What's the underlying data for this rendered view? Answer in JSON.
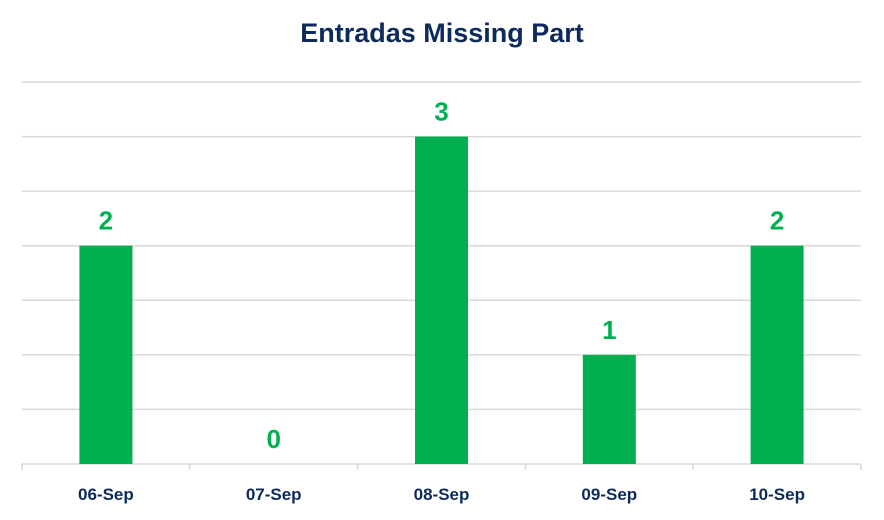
{
  "chart_data": {
    "type": "bar",
    "title": "Entradas Missing Part",
    "xlabel": "",
    "ylabel": "",
    "categories": [
      "06-Sep",
      "07-Sep",
      "08-Sep",
      "09-Sep",
      "10-Sep"
    ],
    "values": [
      2,
      0,
      3,
      1,
      2
    ],
    "data_labels": [
      "2",
      "0",
      "3",
      "1",
      "2"
    ],
    "ylim": [
      0,
      3.5
    ],
    "grid": true,
    "legend": "none",
    "bar_color": "#00b050",
    "label_color": "#00b050",
    "title_color": "#0d2a5c",
    "axis_label_color": "#0d2a5c",
    "grid_color": "#d9d9d9"
  }
}
